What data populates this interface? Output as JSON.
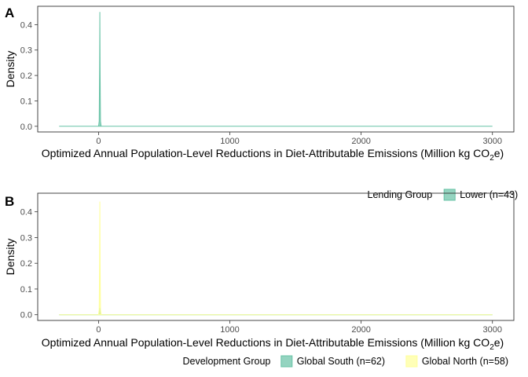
{
  "chart_data": [
    {
      "type": "area",
      "panel_tag": "A",
      "xlabel": {
        "main": "Optimized Annual Population-Level Reductions in Diet-Attributable Emissions (Million kg CO",
        "sub": "2",
        "tail": "e)"
      },
      "ylabel": "Density",
      "xlim": [
        -300,
        3000
      ],
      "ylim": [
        0,
        0.45
      ],
      "x_ticks": [
        0,
        1000,
        2000,
        3000
      ],
      "y_ticks": [
        0.0,
        0.1,
        0.2,
        0.3,
        0.4
      ],
      "grid": false,
      "legend_position": "bottom-right",
      "legend_title": "Lending Group",
      "series": [
        {
          "name": "Lower (n=43)",
          "color": "#66c2a5",
          "x": [
            -300,
            0,
            5,
            8,
            10,
            12,
            15,
            20,
            3000
          ],
          "y": [
            0,
            0,
            0.02,
            0.22,
            0.45,
            0.22,
            0.02,
            0,
            0
          ]
        }
      ]
    },
    {
      "type": "area",
      "panel_tag": "B",
      "xlabel": {
        "main": "Optimized Annual Population-Level Reductions in Diet-Attributable Emissions (Million kg CO",
        "sub": "2",
        "tail": "e)"
      },
      "ylabel": "Density",
      "xlim": [
        -300,
        3000
      ],
      "ylim": [
        0,
        0.45
      ],
      "x_ticks": [
        0,
        1000,
        2000,
        3000
      ],
      "y_ticks": [
        0.0,
        0.1,
        0.2,
        0.3,
        0.4
      ],
      "grid": false,
      "legend_position": "bottom-right",
      "legend_title": "Development Group",
      "series": [
        {
          "name": "Global South (n=62)",
          "color": "#66c2a5",
          "x": [
            -300,
            0,
            5,
            8,
            10,
            12,
            15,
            20,
            3000
          ],
          "y": [
            0,
            0,
            0.01,
            0.02,
            0.025,
            0.02,
            0.01,
            0,
            0
          ]
        },
        {
          "name": "Global North (n=58)",
          "color": "#ffff99",
          "x": [
            -300,
            0,
            5,
            8,
            10,
            12,
            15,
            20,
            3000
          ],
          "y": [
            0,
            0,
            0.02,
            0.2,
            0.44,
            0.2,
            0.02,
            0,
            0
          ]
        }
      ]
    }
  ]
}
